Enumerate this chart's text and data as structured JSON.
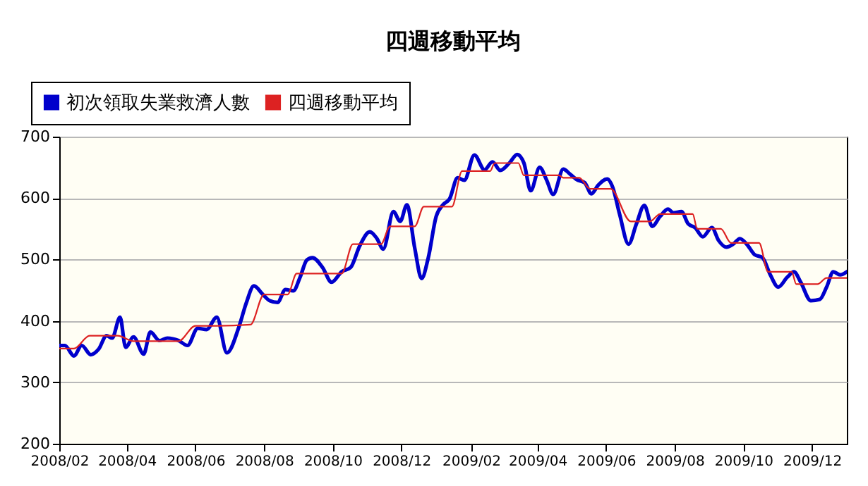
{
  "chart_data": {
    "type": "line",
    "title": "四週移動平均",
    "xlim": [
      "2008-02-01",
      "2010-01-01"
    ],
    "xticks": [
      {
        "value": "2008-02",
        "label": "2008/02"
      },
      {
        "value": "2008-04",
        "label": "2008/04"
      },
      {
        "value": "2008-06",
        "label": "2008/06"
      },
      {
        "value": "2008-08",
        "label": "2008/08"
      },
      {
        "value": "2008-10",
        "label": "2008/10"
      },
      {
        "value": "2008-12",
        "label": "2008/12"
      },
      {
        "value": "2009-02",
        "label": "2009/02"
      },
      {
        "value": "2009-04",
        "label": "2009/04"
      },
      {
        "value": "2009-06",
        "label": "2009/06"
      },
      {
        "value": "2009-08",
        "label": "2009/08"
      },
      {
        "value": "2009-10",
        "label": "2009/10"
      },
      {
        "value": "2009-12",
        "label": "2009/12"
      }
    ],
    "ylim": [
      200,
      700
    ],
    "yticks": [
      200,
      300,
      400,
      500,
      600,
      700
    ],
    "grid": "y",
    "legend": "top left",
    "marker": "none",
    "series": [
      {
        "name": "初次領取失業救濟人數",
        "color": "#0000cc",
        "x": [
          "2008-02-01",
          "2008-02-06",
          "2008-02-14",
          "2008-02-21",
          "2008-02-29",
          "2008-03-07",
          "2008-03-14",
          "2008-03-19",
          "2008-03-26",
          "2008-03-31",
          "2008-04-07",
          "2008-04-16",
          "2008-04-22",
          "2008-04-30",
          "2008-05-07",
          "2008-05-17",
          "2008-05-25",
          "2008-06-03",
          "2008-06-11",
          "2008-06-20",
          "2008-06-29",
          "2008-07-10",
          "2008-07-16",
          "2008-07-23",
          "2008-07-31",
          "2008-08-06",
          "2008-08-13",
          "2008-08-20",
          "2008-08-27",
          "2008-09-02",
          "2008-09-08",
          "2008-09-13",
          "2008-09-22",
          "2008-09-30",
          "2008-10-09",
          "2008-10-17",
          "2008-10-25",
          "2008-11-03",
          "2008-11-09",
          "2008-11-15",
          "2008-11-24",
          "2008-11-30",
          "2008-12-06",
          "2008-12-13",
          "2008-12-19",
          "2008-12-25",
          "2009-01-01",
          "2009-01-07",
          "2009-01-13",
          "2009-01-20",
          "2009-01-26",
          "2009-02-04",
          "2009-02-13",
          "2009-02-20",
          "2009-02-27",
          "2009-03-07",
          "2009-03-14",
          "2009-03-20",
          "2009-03-26",
          "2009-04-03",
          "2009-04-09",
          "2009-04-15",
          "2009-04-24",
          "2009-04-30",
          "2009-05-06",
          "2009-05-13",
          "2009-05-19",
          "2009-05-25",
          "2009-06-02",
          "2009-06-07",
          "2009-06-13",
          "2009-06-21",
          "2009-06-28",
          "2009-07-05",
          "2009-07-12",
          "2009-07-19",
          "2009-07-26",
          "2009-07-31",
          "2009-08-07",
          "2009-08-13",
          "2009-08-19",
          "2009-08-26",
          "2009-09-03",
          "2009-09-09",
          "2009-09-16",
          "2009-09-22",
          "2009-09-28",
          "2009-10-04",
          "2009-10-11",
          "2009-10-18",
          "2009-10-25",
          "2009-11-01",
          "2009-11-09",
          "2009-11-15",
          "2009-11-21",
          "2009-11-30",
          "2009-12-08",
          "2009-12-14",
          "2009-12-20",
          "2009-12-26",
          "2010-01-01"
        ],
        "values": [
          360,
          360,
          343,
          360,
          345,
          354,
          376,
          372,
          406,
          357,
          374,
          346,
          382,
          368,
          372,
          368,
          360,
          388,
          386,
          406,
          348,
          392,
          428,
          457,
          443,
          433,
          430,
          451,
          449,
          471,
          499,
          503,
          487,
          463,
          480,
          487,
          522,
          545,
          535,
          517,
          578,
          562,
          589,
          518,
          469,
          503,
          570,
          589,
          599,
          633,
          629,
          670,
          646,
          659,
          645,
          657,
          671,
          657,
          612,
          650,
          630,
          606,
          647,
          639,
          630,
          625,
          607,
          621,
          631,
          617,
          574,
          525,
          558,
          588,
          554,
          570,
          582,
          576,
          578,
          558,
          552,
          537,
          552,
          531,
          520,
          525,
          534,
          525,
          508,
          503,
          475,
          455,
          471,
          480,
          463,
          433,
          435,
          455,
          480,
          475,
          480
        ]
      },
      {
        "name": "四週移動平均",
        "color": "#dd2222",
        "x": [
          "2008-02-01",
          "2008-02-14",
          "2008-02-28",
          "2008-03-24",
          "2008-04-07",
          "2008-05-17",
          "2008-06-01",
          "2008-06-20",
          "2008-07-20",
          "2008-08-01",
          "2008-08-22",
          "2008-08-30",
          "2008-10-09",
          "2008-10-19",
          "2008-11-13",
          "2008-11-21",
          "2008-12-13",
          "2008-12-21",
          "2009-01-15",
          "2009-01-24",
          "2009-02-18",
          "2009-02-22",
          "2009-03-15",
          "2009-03-20",
          "2009-04-20",
          "2009-04-24",
          "2009-05-08",
          "2009-05-18",
          "2009-06-05",
          "2009-06-23",
          "2009-07-10",
          "2009-07-19",
          "2009-08-17",
          "2009-08-21",
          "2009-09-11",
          "2009-09-20",
          "2009-10-15",
          "2009-10-23",
          "2009-11-13",
          "2009-11-17",
          "2009-12-06",
          "2009-12-14",
          "2010-01-01"
        ],
        "values": [
          355,
          355,
          376,
          376,
          367,
          367,
          392,
          392,
          394,
          443,
          443,
          477,
          477,
          525,
          525,
          554,
          554,
          586,
          586,
          644,
          644,
          657,
          657,
          637,
          637,
          633,
          633,
          615,
          615,
          562,
          562,
          574,
          574,
          550,
          550,
          527,
          527,
          480,
          480,
          460,
          460,
          470,
          470
        ]
      }
    ]
  }
}
